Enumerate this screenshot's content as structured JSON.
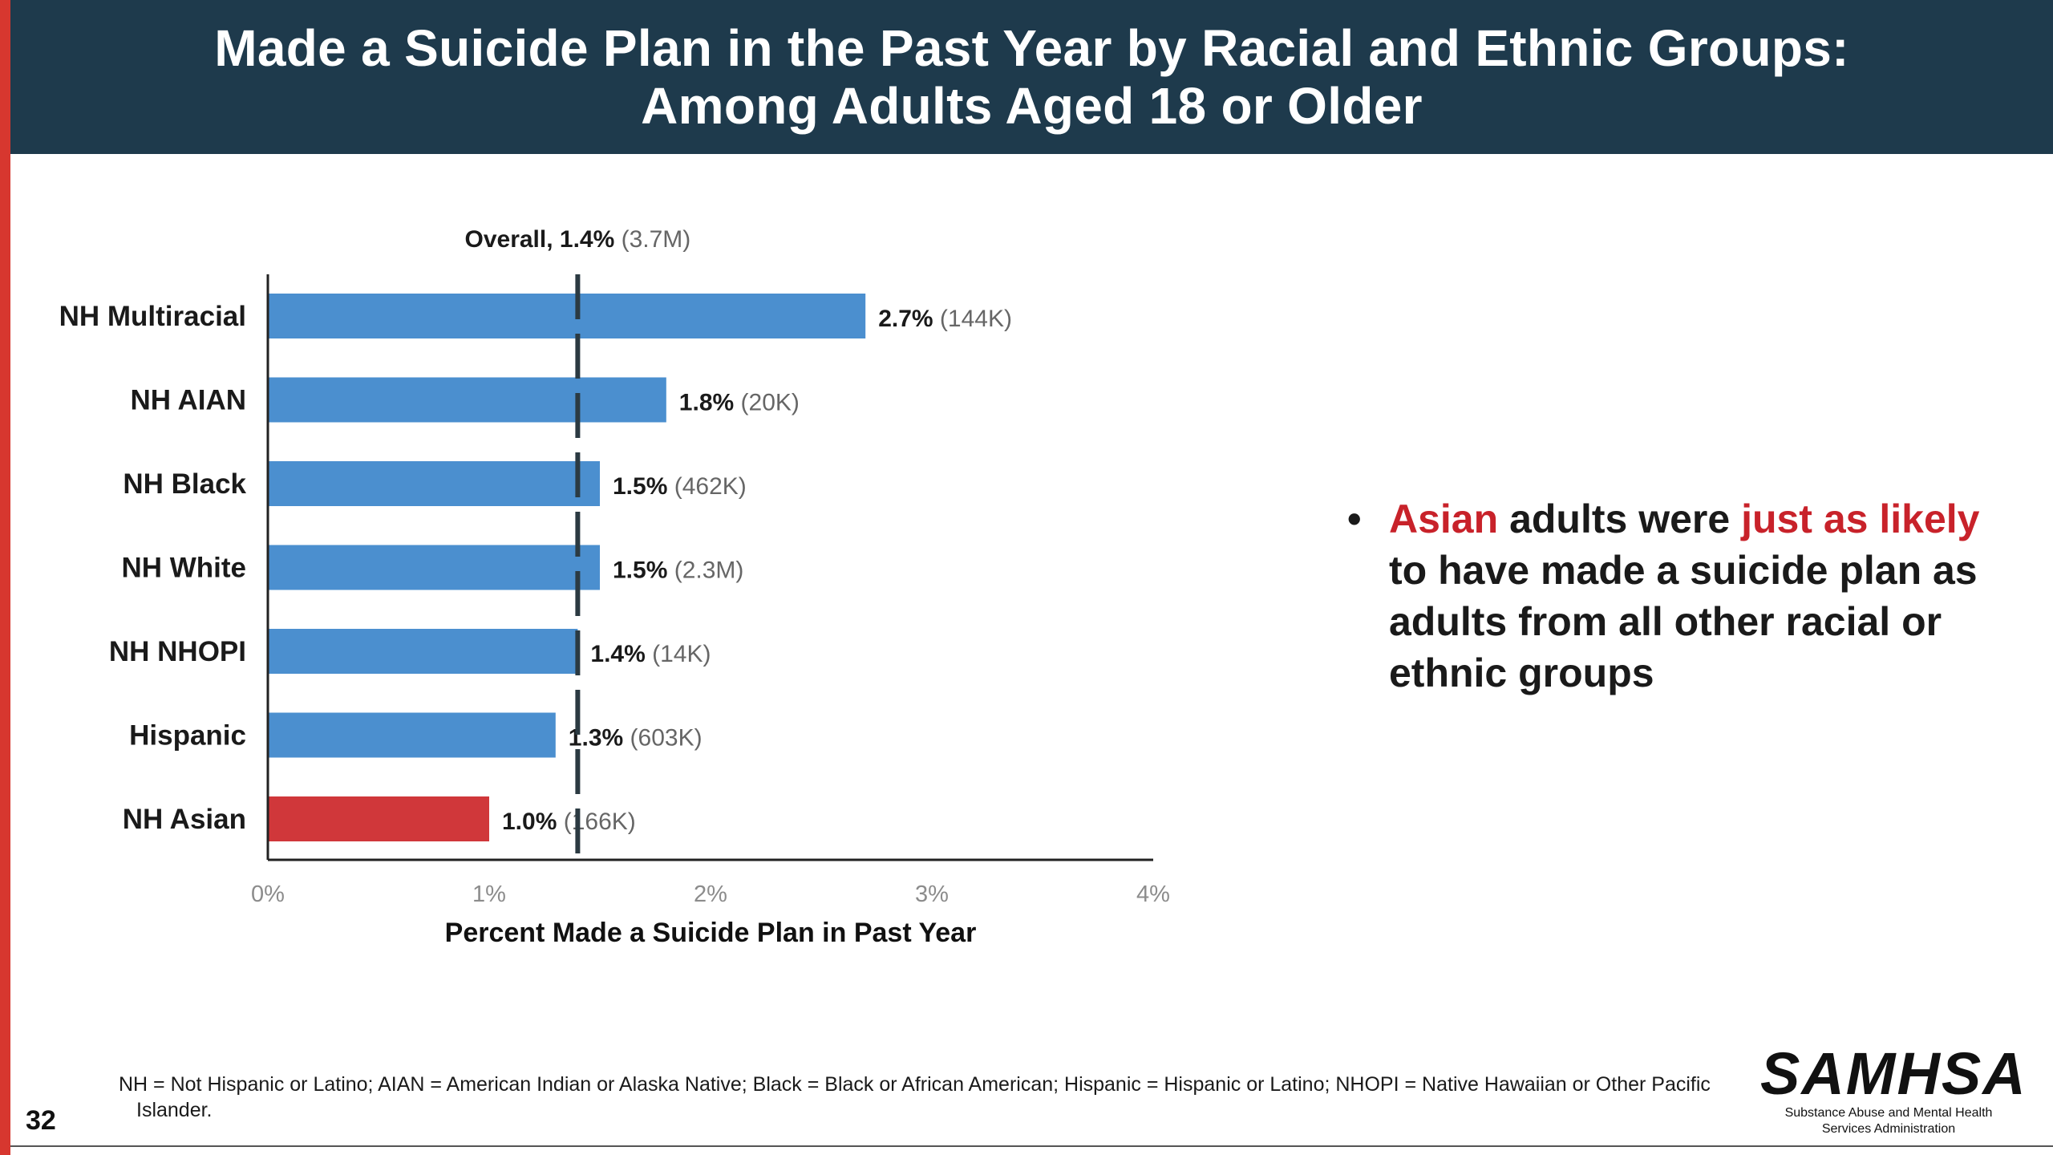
{
  "header": {
    "title_line1": "Made a Suicide Plan in the Past Year by Racial and Ethnic Groups:",
    "title_line2": "Among Adults Aged 18 or Older"
  },
  "chart_data": {
    "type": "bar",
    "orientation": "horizontal",
    "categories": [
      "NH Multiracial",
      "NH AIAN",
      "NH Black",
      "NH White",
      "NH NHOPI",
      "Hispanic",
      "NH Asian"
    ],
    "values": [
      2.7,
      1.8,
      1.5,
      1.5,
      1.4,
      1.3,
      1.0
    ],
    "counts": [
      "144K",
      "20K",
      "462K",
      "2.3M",
      "14K",
      "603K",
      "166K"
    ],
    "value_labels": [
      "2.7%",
      "1.8%",
      "1.5%",
      "1.5%",
      "1.4%",
      "1.3%",
      "1.0%"
    ],
    "highlight_category": "NH Asian",
    "xlabel": "Percent Made a Suicide Plan in Past Year",
    "xlim": [
      0,
      4
    ],
    "ticks": [
      0,
      1,
      2,
      3,
      4
    ],
    "tick_labels": [
      "0%",
      "1%",
      "2%",
      "3%",
      "4%"
    ],
    "reference_line": {
      "value": 1.4,
      "label": "Overall, 1.4%",
      "count": "(3.7M)"
    },
    "colors": {
      "bar": "#4b8fcf",
      "highlight": "#d0373a",
      "reference": "#2b3a42",
      "axis": "#222222"
    }
  },
  "bullet": {
    "dot": "•",
    "part1": "Asian",
    "part2": " adults were ",
    "part3": "just as likely",
    "part4": " to have made a suicide plan as adults from all other racial or ethnic groups"
  },
  "footnote": "NH = Not Hispanic or Latino; AIAN = American Indian or Alaska Native; Black = Black or African American; Hispanic = Hispanic or Latino; NHOPI = Native Hawaiian or Other Pacific Islander.",
  "page_number": "32",
  "logo": {
    "name": "SAMHSA",
    "subtitle_line1": "Substance Abuse and Mental Health",
    "subtitle_line2": "Services Administration"
  }
}
